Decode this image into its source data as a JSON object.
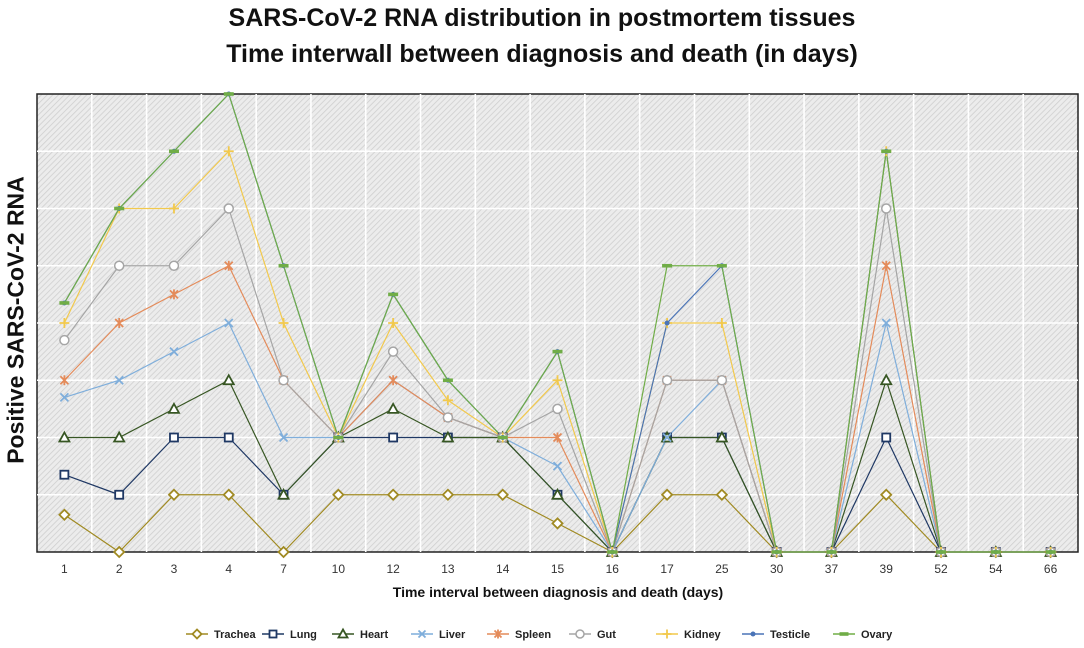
{
  "chart_data": {
    "type": "line",
    "title": "SARS-CoV-2 RNA distribution in postmortem tissues",
    "subtitle": "Time interwall between diagnosis and death (in days)",
    "xlabel": "Time interval between diagnosis and death (days)",
    "ylabel": "Positive SARS-CoV-2 RNA",
    "categories": [
      "1",
      "2",
      "3",
      "4",
      "7",
      "10",
      "12",
      "13",
      "14",
      "15",
      "16",
      "17",
      "25",
      "30",
      "37",
      "39",
      "52",
      "54",
      "66"
    ],
    "ylim": [
      0,
      8
    ],
    "grid": true,
    "legend_position": "bottom",
    "series": [
      {
        "name": "Trachea",
        "color": "#A08A22",
        "marker": "diamond",
        "values": [
          0.65,
          0,
          1,
          1,
          0,
          1,
          1,
          1,
          1,
          0.5,
          0,
          1,
          1,
          0,
          0,
          1,
          0,
          0,
          0
        ]
      },
      {
        "name": "Lung",
        "color": "#1F3864",
        "marker": "square",
        "values": [
          1.35,
          1,
          2,
          2,
          1,
          2,
          2,
          2,
          2,
          1,
          0,
          2,
          2,
          0,
          0,
          2,
          0,
          0,
          0
        ]
      },
      {
        "name": "Heart",
        "color": "#375623",
        "marker": "triangle",
        "values": [
          2,
          2,
          2.5,
          3,
          1,
          2,
          2.5,
          2,
          2,
          1,
          0,
          2,
          2,
          0,
          0,
          3,
          0,
          0,
          0
        ]
      },
      {
        "name": "Liver",
        "color": "#7FAEDB",
        "marker": "x",
        "values": [
          2.7,
          3,
          3.5,
          4,
          2,
          2,
          3,
          2.35,
          2,
          1.5,
          0,
          2,
          3,
          0,
          0,
          4,
          0,
          0,
          0
        ]
      },
      {
        "name": "Spleen",
        "color": "#E48B5A",
        "marker": "star",
        "values": [
          3,
          4,
          4.5,
          5,
          3,
          2,
          3,
          2.35,
          2,
          2,
          0,
          3,
          3,
          0,
          0,
          5,
          0,
          0,
          0
        ]
      },
      {
        "name": "Gut",
        "color": "#A5A5A5",
        "marker": "circle",
        "values": [
          3.7,
          5,
          5,
          6,
          3,
          2,
          3.5,
          2.35,
          2,
          2.5,
          0,
          3,
          3,
          0,
          0,
          6,
          0,
          0,
          0
        ]
      },
      {
        "name": "Kidney",
        "color": "#F2C94C",
        "marker": "plus",
        "values": [
          4,
          6,
          6,
          7,
          4,
          2,
          4,
          2.65,
          2,
          3,
          0,
          4,
          4,
          0,
          0,
          7,
          0,
          0,
          0
        ]
      },
      {
        "name": "Testicle",
        "color": "#4A74B7",
        "marker": "dot",
        "values": [
          4.35,
          6,
          7,
          8,
          5,
          2,
          4.5,
          3,
          2,
          3.5,
          0,
          4,
          5,
          0,
          0,
          7,
          0,
          0,
          0
        ]
      },
      {
        "name": "Ovary",
        "color": "#70AD47",
        "marker": "dash",
        "values": [
          4.35,
          6,
          7,
          8,
          5,
          2,
          4.5,
          3,
          2,
          3.5,
          0,
          5,
          5,
          0,
          0,
          7,
          0,
          0,
          0
        ]
      }
    ]
  }
}
